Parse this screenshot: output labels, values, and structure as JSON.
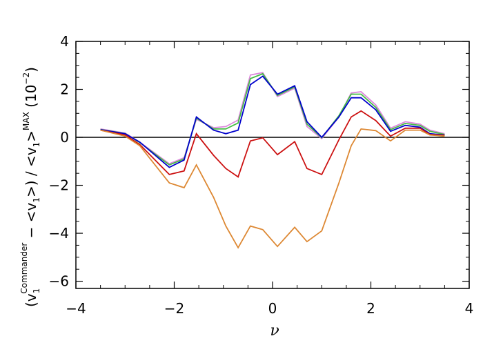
{
  "chart_data": {
    "type": "line",
    "xlabel": "ν",
    "ylabel": {
      "part1": "(v",
      "sub1": "1",
      "sup1": "Commander",
      "part2": " − <v",
      "sub2": "1",
      "part3": ">) / <v",
      "sub3": "1",
      "part4": ">",
      "sup4": "MAX",
      "part5": " (10",
      "sup5": "−2",
      "part6": ")"
    },
    "xlim": [
      -4,
      4
    ],
    "ylim": [
      -6.3,
      4.0
    ],
    "xticks": [
      -4,
      -2,
      0,
      2,
      4
    ],
    "xtick_labels": [
      "−4",
      "−2",
      "0",
      "2",
      "4"
    ],
    "yticks": [
      -6,
      -4,
      -2,
      0,
      2,
      4
    ],
    "ytick_labels": [
      "−6",
      "−4",
      "−2",
      "0",
      "2",
      "4"
    ],
    "reference_line_y": 0,
    "x": [
      -3.5,
      -3.0,
      -2.7,
      -2.1,
      -1.8,
      -1.55,
      -1.2,
      -0.95,
      -0.7,
      -0.45,
      -0.2,
      0.1,
      0.45,
      0.7,
      1.0,
      1.35,
      1.6,
      1.8,
      2.1,
      2.4,
      2.7,
      3.0,
      3.2,
      3.5
    ],
    "series": [
      {
        "color": "#dd88dd",
        "values": [
          0.35,
          0.18,
          -0.2,
          -1.1,
          -0.85,
          0.75,
          0.4,
          0.45,
          0.72,
          2.6,
          2.7,
          1.7,
          2.05,
          0.45,
          -0.05,
          0.85,
          1.85,
          1.9,
          1.35,
          0.38,
          0.65,
          0.55,
          0.3,
          0.15
        ]
      },
      {
        "color": "#44bb44",
        "values": [
          0.33,
          0.16,
          -0.22,
          -1.15,
          -0.9,
          0.8,
          0.35,
          0.35,
          0.6,
          2.45,
          2.65,
          1.75,
          2.1,
          0.55,
          -0.02,
          0.9,
          1.8,
          1.8,
          1.25,
          0.32,
          0.58,
          0.5,
          0.25,
          0.12
        ]
      },
      {
        "color": "#0000cc",
        "values": [
          0.32,
          0.15,
          -0.2,
          -1.25,
          -0.95,
          0.85,
          0.3,
          0.15,
          0.3,
          2.2,
          2.55,
          1.8,
          2.15,
          0.65,
          0.0,
          0.85,
          1.65,
          1.65,
          1.15,
          0.25,
          0.5,
          0.42,
          0.15,
          0.1
        ]
      },
      {
        "color": "#cc1111",
        "values": [
          0.3,
          0.1,
          -0.3,
          -1.55,
          -1.4,
          0.15,
          -0.75,
          -1.3,
          -1.65,
          -0.15,
          -0.02,
          -0.72,
          -0.18,
          -1.3,
          -1.55,
          -0.1,
          0.85,
          1.1,
          0.7,
          0.05,
          0.38,
          0.38,
          0.12,
          0.08
        ]
      },
      {
        "color": "#dd8833",
        "values": [
          0.3,
          0.05,
          -0.35,
          -1.9,
          -2.1,
          -1.15,
          -2.5,
          -3.7,
          -4.6,
          -3.7,
          -3.85,
          -4.55,
          -3.75,
          -4.35,
          -3.9,
          -1.9,
          -0.35,
          0.35,
          0.28,
          -0.15,
          0.3,
          0.3,
          0.1,
          0.05
        ]
      }
    ]
  }
}
